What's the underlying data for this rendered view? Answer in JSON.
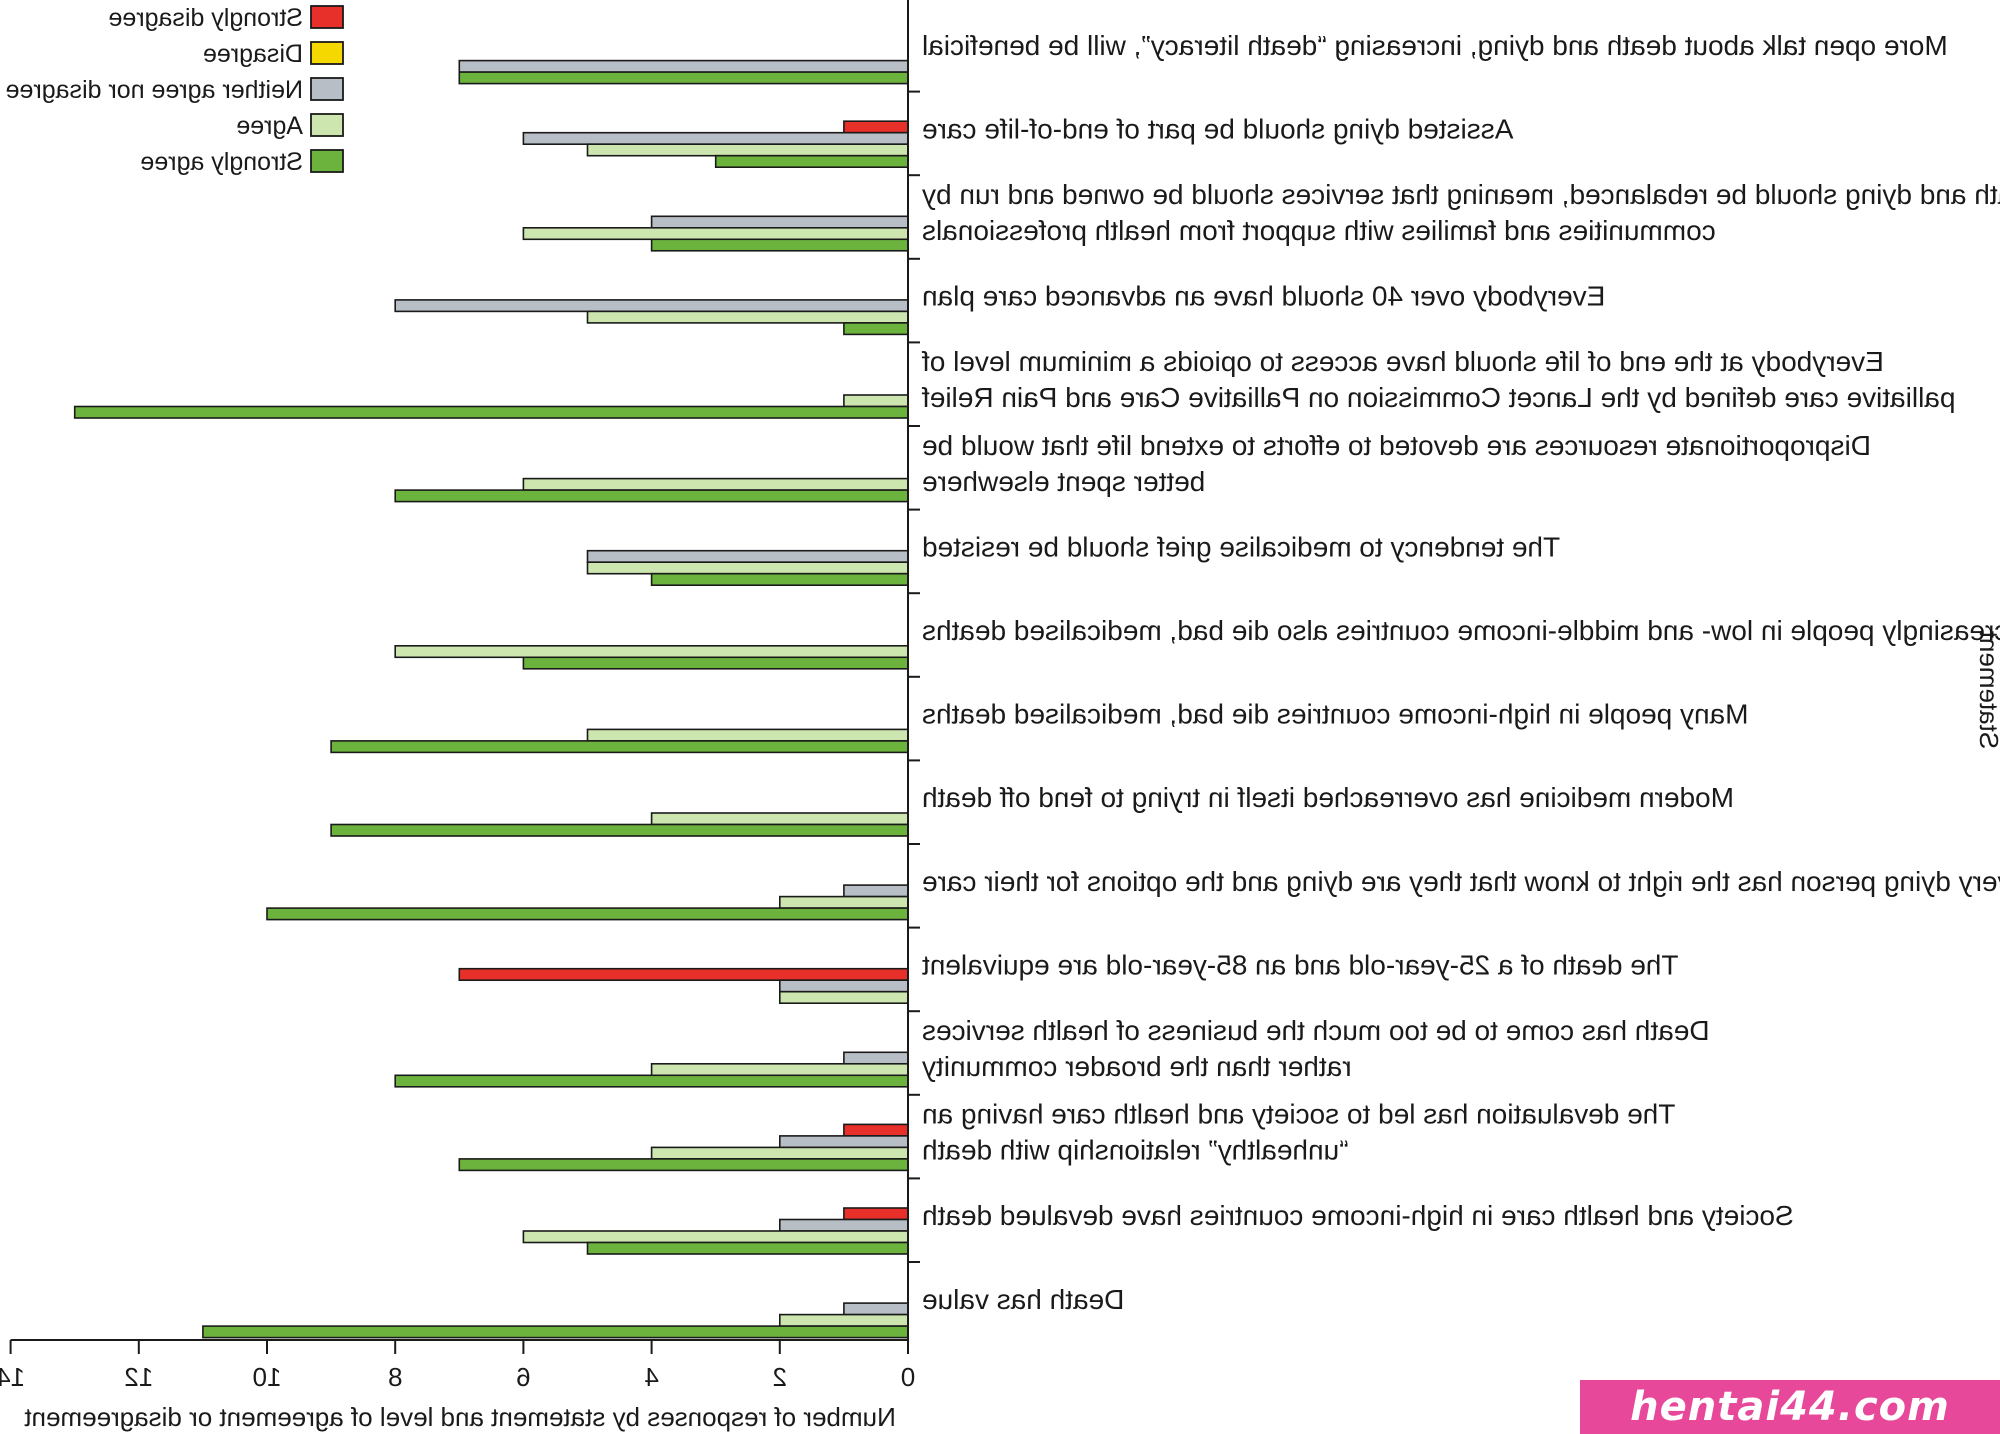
{
  "chart_data": {
    "type": "bar",
    "orientation": "horizontal",
    "mirrored_image": true,
    "xlabel": "Number of responses by statement and level of agreement or disagreement",
    "ylabel": "Statement",
    "xlim": [
      0,
      14
    ],
    "xticks": [
      0,
      2,
      4,
      6,
      8,
      10,
      12,
      14
    ],
    "legend_position": "top-left",
    "series": [
      {
        "name": "Strongly disagree",
        "color": "#e8302a"
      },
      {
        "name": "Disagree",
        "color": "#f5d800"
      },
      {
        "name": "Neither agree nor disagree",
        "color": "#b8bec6"
      },
      {
        "name": "Agree",
        "color": "#cde6b0"
      },
      {
        "name": "Strongly agree",
        "color": "#6cb33e"
      }
    ],
    "categories": [
      {
        "lines": [
          "More open talk about death and dying, increasing “death literacy”, will be beneficial"
        ],
        "values": {
          "Neither agree nor disagree": 7,
          "Strongly agree": 7
        }
      },
      {
        "lines": [
          "Assisted dying should be part of end-of-life care"
        ],
        "values": {
          "Strongly disagree": 1,
          "Neither agree nor disagree": 6,
          "Agree": 5,
          "Strongly agree": 3
        }
      },
      {
        "lines": [
          "Death and dying should be rebalanced, meaning that services should be owned and run by",
          "communities and families with support from health professionals"
        ],
        "values": {
          "Neither agree nor disagree": 4,
          "Agree": 6,
          "Strongly agree": 4
        }
      },
      {
        "lines": [
          "Everybody over 40 should have an advanced care plan"
        ],
        "values": {
          "Neither agree nor disagree": 8,
          "Agree": 5,
          "Strongly agree": 1
        }
      },
      {
        "lines": [
          "Everybody at the end of life should have access to opioids a minimum level of",
          "palliative care defined by the Lancet Commission on Palliative Care and Pain Relief"
        ],
        "values": {
          "Agree": 1,
          "Strongly agree": 13
        }
      },
      {
        "lines": [
          "Disproportionate resources are devoted to efforts to extend life that would be",
          "better spent elsewhere"
        ],
        "values": {
          "Agree": 6,
          "Strongly agree": 8
        }
      },
      {
        "lines": [
          "The tendency to medicalise grief should be resisted"
        ],
        "values": {
          "Neither agree nor disagree": 5,
          "Agree": 5,
          "Strongly agree": 4
        }
      },
      {
        "lines": [
          "Increasingly people in low- and middle-income countries also die bad, medicalised deaths"
        ],
        "values": {
          "Agree": 8,
          "Strongly agree": 6
        }
      },
      {
        "lines": [
          "Many people in high-income countries die bad, medicalised deaths"
        ],
        "values": {
          "Agree": 5,
          "Strongly agree": 9
        }
      },
      {
        "lines": [
          "Modern medicine has overreached itself in trying to fend off death"
        ],
        "values": {
          "Agree": 4,
          "Strongly agree": 9
        }
      },
      {
        "lines": [
          "Every dying person has the right to know that they are dying and the options for their care"
        ],
        "values": {
          "Neither agree nor disagree": 1,
          "Agree": 2,
          "Strongly agree": 10
        }
      },
      {
        "lines": [
          "The death of a 25-year-old and an 85-year-old are equivalent"
        ],
        "values": {
          "Strongly disagree": 7,
          "Neither agree nor disagree": 2,
          "Agree": 2
        }
      },
      {
        "lines": [
          "Death has come to be too much the business of health services",
          "rather than the broader community"
        ],
        "values": {
          "Neither agree nor disagree": 1,
          "Agree": 4,
          "Strongly agree": 8
        }
      },
      {
        "lines": [
          "The devaluation has led to society and health care having an",
          "“unhealthy” relationship with death"
        ],
        "values": {
          "Strongly disagree": 1,
          "Neither agree nor disagree": 2,
          "Agree": 4,
          "Strongly agree": 7
        }
      },
      {
        "lines": [
          "Society and health care in high-income countries have devalued death"
        ],
        "values": {
          "Strongly disagree": 1,
          "Neither agree nor disagree": 2,
          "Agree": 6,
          "Strongly agree": 5
        }
      },
      {
        "lines": [
          "Death has value"
        ],
        "values": {
          "Neither agree nor disagree": 1,
          "Agree": 2,
          "Strongly agree": 11
        }
      }
    ]
  },
  "watermark": "hentai44.com"
}
